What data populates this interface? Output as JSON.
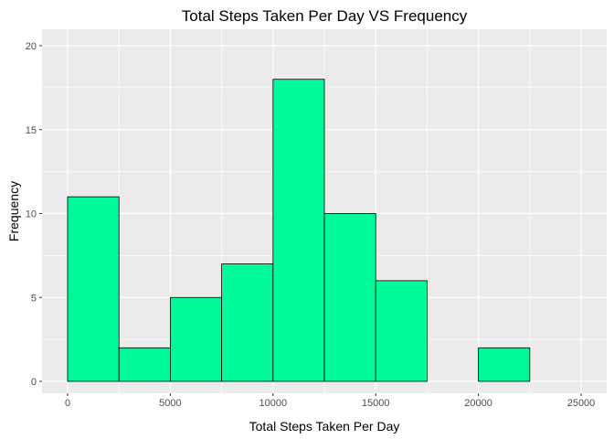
{
  "chart_data": {
    "type": "bar",
    "subtype": "histogram",
    "title": "Total Steps Taken Per Day VS Frequency",
    "xlabel": "Total Steps Taken Per Day",
    "ylabel": "Frequency",
    "bins": [
      {
        "start": 0,
        "end": 2500,
        "count": 11
      },
      {
        "start": 2500,
        "end": 5000,
        "count": 2
      },
      {
        "start": 5000,
        "end": 7500,
        "count": 5
      },
      {
        "start": 7500,
        "end": 10000,
        "count": 7
      },
      {
        "start": 10000,
        "end": 12500,
        "count": 18
      },
      {
        "start": 12500,
        "end": 15000,
        "count": 10
      },
      {
        "start": 15000,
        "end": 17500,
        "count": 6
      },
      {
        "start": 17500,
        "end": 20000,
        "count": 0
      },
      {
        "start": 20000,
        "end": 22500,
        "count": 2
      },
      {
        "start": 22500,
        "end": 25000,
        "count": 0
      }
    ],
    "xlim": [
      0,
      25000
    ],
    "ylim": [
      0,
      20
    ],
    "xticks": [
      0,
      5000,
      10000,
      15000,
      20000,
      25000
    ],
    "yticks": [
      0,
      5,
      10,
      15,
      20
    ],
    "grid": true,
    "colors": {
      "bar_fill": "#00FA9A",
      "bar_stroke": "#000000",
      "panel_bg": "#EBEBEB",
      "grid_major": "#FFFFFF"
    }
  }
}
